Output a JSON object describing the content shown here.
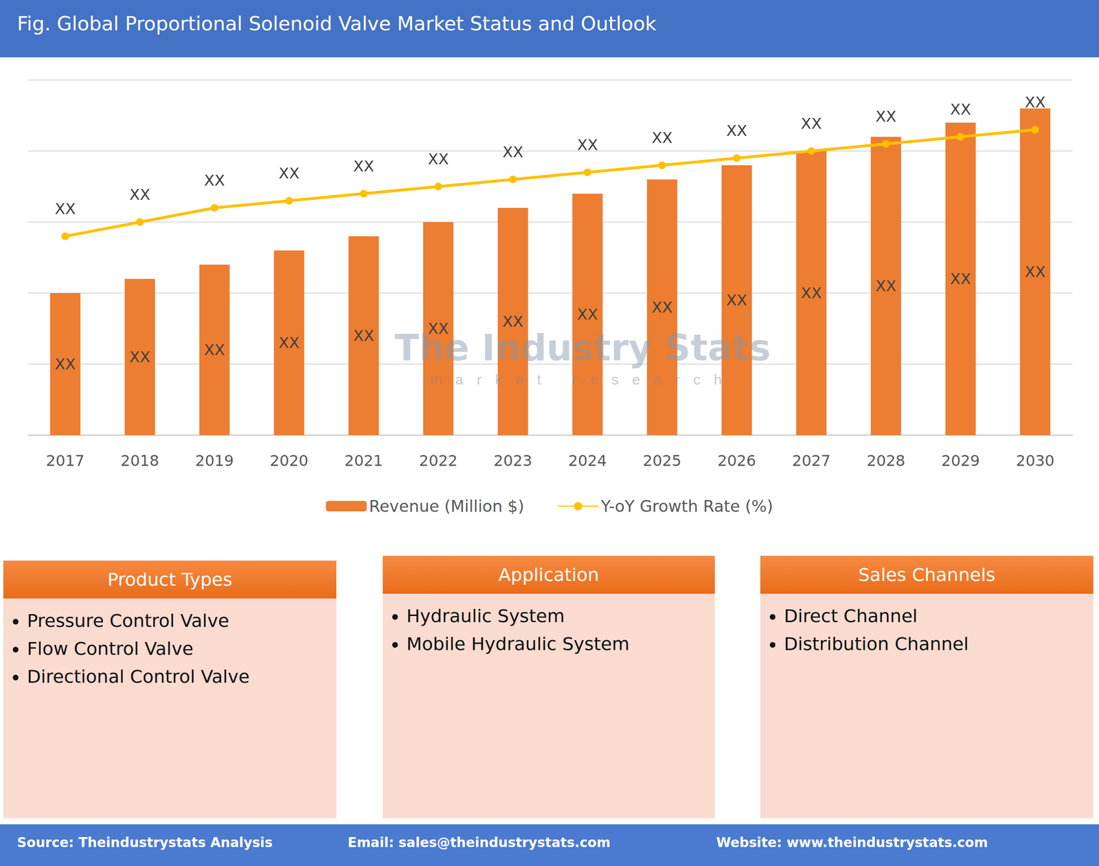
{
  "chart_data": {
    "type": "bar",
    "title": "Fig. Global Proportional Solenoid Valve Market Status and Outlook",
    "categories": [
      "2017",
      "2018",
      "2019",
      "2020",
      "2021",
      "2022",
      "2023",
      "2024",
      "2025",
      "2026",
      "2027",
      "2028",
      "2029",
      "2030"
    ],
    "series": [
      {
        "name": "Revenue (Million $)",
        "type": "bar",
        "color": "#ED7D31",
        "values": [
          2.0,
          2.2,
          2.4,
          2.6,
          2.8,
          3.0,
          3.2,
          3.4,
          3.6,
          3.8,
          4.0,
          4.2,
          4.4,
          4.6
        ],
        "value_labels": [
          "XX",
          "XX",
          "XX",
          "XX",
          "XX",
          "XX",
          "XX",
          "XX",
          "XX",
          "XX",
          "XX",
          "XX",
          "XX",
          "XX"
        ]
      },
      {
        "name": "Y-oY Growth Rate (%)",
        "type": "line",
        "color": "#FFC000",
        "marker": "circle",
        "values": [
          2.8,
          3.0,
          3.2,
          3.3,
          3.4,
          3.5,
          3.6,
          3.7,
          3.8,
          3.9,
          4.0,
          4.1,
          4.2,
          4.3
        ],
        "value_labels": [
          "XX",
          "XX",
          "XX",
          "XX",
          "XX",
          "XX",
          "XX",
          "XX",
          "XX",
          "XX",
          "XX",
          "XX",
          "XX",
          "XX"
        ]
      }
    ],
    "ylim": [
      0,
      5
    ],
    "yticks": [
      0,
      1,
      2,
      3,
      4,
      5
    ],
    "grid": true,
    "data_labels": true,
    "tick_labels": "x",
    "legend": "bottom"
  },
  "watermark": {
    "title": "The Industry Stats",
    "subtitle": "market research"
  },
  "panels": [
    {
      "title": "Product Types",
      "items": [
        "Pressure Control Valve",
        "Flow Control Valve",
        "Directional Control Valve"
      ]
    },
    {
      "title": "Application",
      "items": [
        "Hydraulic System",
        "Mobile Hydraulic System"
      ]
    },
    {
      "title": "Sales Channels",
      "items": [
        "Direct Channel",
        "Distribution Channel"
      ]
    }
  ],
  "footer": [
    "Source: Theindustrystats Analysis",
    "Email: sales@theindustrystats.com",
    "Website: www.theindustrystats.com"
  ]
}
